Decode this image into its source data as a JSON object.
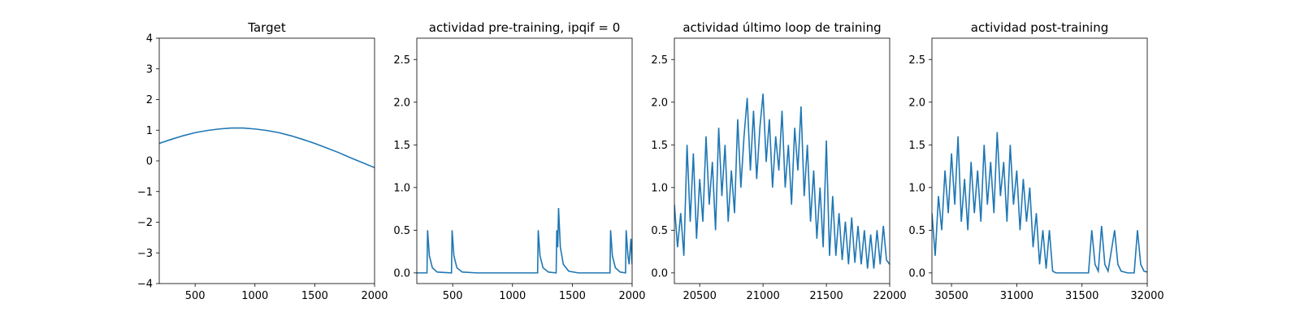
{
  "chart_data": [
    {
      "type": "line",
      "title": "Target",
      "color": "#1f77b4",
      "x": [
        200,
        300,
        400,
        500,
        600,
        700,
        800,
        900,
        1000,
        1100,
        1200,
        1300,
        1400,
        1500,
        1600,
        1700,
        1800,
        1900,
        2000
      ],
      "values": [
        0.57,
        0.7,
        0.82,
        0.92,
        0.99,
        1.04,
        1.07,
        1.07,
        1.04,
        0.99,
        0.92,
        0.82,
        0.7,
        0.57,
        0.42,
        0.27,
        0.1,
        -0.06,
        -0.22
      ],
      "xlim": [
        200,
        2000
      ],
      "ylim": [
        -4,
        4
      ],
      "xticks": [
        500,
        1000,
        1500,
        2000
      ],
      "yticks": [
        {
          "value": -4,
          "label": "−4"
        },
        {
          "value": -3,
          "label": "−3"
        },
        {
          "value": -2,
          "label": "−2"
        },
        {
          "value": -1,
          "label": "−1"
        },
        0,
        1,
        2,
        3,
        4
      ]
    },
    {
      "type": "line",
      "title": "actividad pre-training, ipqif = 0",
      "color": "#1f77b4",
      "x": [
        200,
        285,
        290,
        305,
        330,
        370,
        490,
        495,
        510,
        535,
        580,
        700,
        1210,
        1215,
        1230,
        1255,
        1300,
        1365,
        1370,
        1378,
        1385,
        1400,
        1425,
        1470,
        1550,
        1815,
        1820,
        1835,
        1860,
        1900,
        1945,
        1950,
        1965,
        1975,
        1985,
        1990,
        2000
      ],
      "values": [
        0,
        0,
        0.5,
        0.2,
        0.06,
        0.01,
        0,
        0.5,
        0.2,
        0.06,
        0.01,
        0,
        0,
        0.5,
        0.2,
        0.06,
        0.01,
        0,
        0.5,
        0.3,
        0.76,
        0.3,
        0.1,
        0.02,
        0,
        0,
        0.5,
        0.2,
        0.06,
        0.01,
        0,
        0.5,
        0.2,
        0.1,
        0.3,
        0.4,
        0.1
      ],
      "xlim": [
        200,
        2000
      ],
      "ylim": [
        -0.125,
        2.75
      ],
      "xticks": [
        500,
        1000,
        1500,
        2000
      ],
      "yticks": [
        {
          "value": 0,
          "label": "0.0"
        },
        0.5,
        {
          "value": 1,
          "label": "1.0"
        },
        1.5,
        {
          "value": 2,
          "label": "2.0"
        },
        2.5
      ]
    },
    {
      "type": "line",
      "title": "actividad último loop de training",
      "color": "#1f77b4",
      "x": [
        20300,
        20325,
        20350,
        20375,
        20400,
        20425,
        20450,
        20475,
        20500,
        20525,
        20550,
        20575,
        20600,
        20625,
        20650,
        20675,
        20700,
        20725,
        20750,
        20775,
        20800,
        20825,
        20850,
        20875,
        20900,
        20925,
        20950,
        20975,
        21000,
        21025,
        21050,
        21075,
        21100,
        21125,
        21150,
        21175,
        21200,
        21225,
        21250,
        21275,
        21300,
        21325,
        21350,
        21375,
        21400,
        21425,
        21450,
        21475,
        21500,
        21525,
        21550,
        21575,
        21600,
        21625,
        21650,
        21675,
        21700,
        21725,
        21750,
        21775,
        21800,
        21825,
        21850,
        21875,
        21900,
        21925,
        21950,
        21975,
        22000
      ],
      "values": [
        0.8,
        0.3,
        0.7,
        0.2,
        1.5,
        0.6,
        1.4,
        0.4,
        1.1,
        0.6,
        1.6,
        0.8,
        1.3,
        0.5,
        1.7,
        0.9,
        1.5,
        0.6,
        1.2,
        0.7,
        1.8,
        1.0,
        1.6,
        2.05,
        1.2,
        1.9,
        1.1,
        1.7,
        2.1,
        1.3,
        1.8,
        1.0,
        1.6,
        1.2,
        1.9,
        1.0,
        1.5,
        0.8,
        1.7,
        1.2,
        1.95,
        0.9,
        1.5,
        0.6,
        1.2,
        0.4,
        1.0,
        0.3,
        1.55,
        0.2,
        0.9,
        0.2,
        0.7,
        0.15,
        0.6,
        0.1,
        0.65,
        0.12,
        0.55,
        0.1,
        0.5,
        0.05,
        0.45,
        0.05,
        0.5,
        0.1,
        0.55,
        0.15,
        0.1
      ],
      "xlim": [
        20300,
        22000
      ],
      "ylim": [
        -0.125,
        2.75
      ],
      "xticks": [
        20500,
        21000,
        21500,
        22000
      ],
      "yticks": [
        {
          "value": 0,
          "label": "0.0"
        },
        0.5,
        {
          "value": 1,
          "label": "1.0"
        },
        1.5,
        {
          "value": 2,
          "label": "2.0"
        },
        2.5
      ]
    },
    {
      "type": "line",
      "title": "actividad post-training",
      "color": "#1f77b4",
      "x": [
        30350,
        30375,
        30400,
        30425,
        30450,
        30475,
        30500,
        30525,
        30550,
        30575,
        30600,
        30625,
        30650,
        30675,
        30700,
        30725,
        30750,
        30775,
        30800,
        30825,
        30850,
        30875,
        30900,
        30925,
        30950,
        30975,
        31000,
        31025,
        31050,
        31075,
        31100,
        31125,
        31150,
        31175,
        31200,
        31225,
        31250,
        31275,
        31300,
        31350,
        31400,
        31450,
        31500,
        31550,
        31575,
        31600,
        31625,
        31650,
        31675,
        31700,
        31750,
        31775,
        31800,
        31850,
        31900,
        31925,
        31950,
        31975,
        32000
      ],
      "values": [
        0.7,
        0.2,
        0.9,
        0.5,
        1.2,
        0.7,
        1.4,
        0.8,
        1.6,
        0.6,
        1.1,
        0.5,
        1.3,
        0.7,
        1.2,
        0.6,
        1.5,
        0.8,
        1.3,
        0.7,
        1.65,
        0.9,
        1.3,
        0.6,
        1.5,
        0.8,
        1.2,
        0.5,
        1.1,
        0.6,
        1.0,
        0.3,
        0.7,
        0.1,
        0.5,
        0.05,
        0.5,
        0.02,
        0,
        0,
        0,
        0,
        0,
        0,
        0.5,
        0.1,
        0.02,
        0.55,
        0.1,
        0.02,
        0.5,
        0.1,
        0.02,
        0,
        0,
        0.5,
        0.1,
        0.02,
        0.01
      ],
      "xlim": [
        30350,
        32000
      ],
      "ylim": [
        -0.125,
        2.75
      ],
      "xticks": [
        30500,
        31000,
        31500,
        32000
      ],
      "yticks": [
        {
          "value": 0,
          "label": "0.0"
        },
        0.5,
        {
          "value": 1,
          "label": "1.0"
        },
        1.5,
        {
          "value": 2,
          "label": "2.0"
        },
        2.5
      ]
    }
  ]
}
